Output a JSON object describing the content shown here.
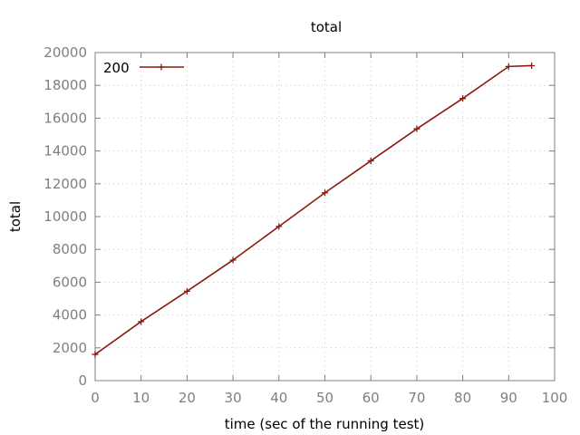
{
  "chart_data": {
    "type": "line",
    "title": "total",
    "xlabel": "time (sec of the running test)",
    "ylabel": "total",
    "xlim": [
      0,
      100
    ],
    "ylim": [
      0,
      20000
    ],
    "x_ticks": [
      0,
      10,
      20,
      30,
      40,
      50,
      60,
      70,
      80,
      90,
      100
    ],
    "y_ticks": [
      0,
      2000,
      4000,
      6000,
      8000,
      10000,
      12000,
      14000,
      16000,
      18000,
      20000
    ],
    "grid": true,
    "legend_position": "top-left",
    "series": [
      {
        "name": "200",
        "color": "#8b1a0e",
        "marker": "plus",
        "x": [
          0,
          10,
          20,
          30,
          40,
          50,
          60,
          70,
          80,
          90,
          95
        ],
        "y": [
          1600,
          3600,
          5450,
          7350,
          9400,
          11450,
          13400,
          15350,
          17200,
          19150,
          19200
        ]
      }
    ]
  }
}
